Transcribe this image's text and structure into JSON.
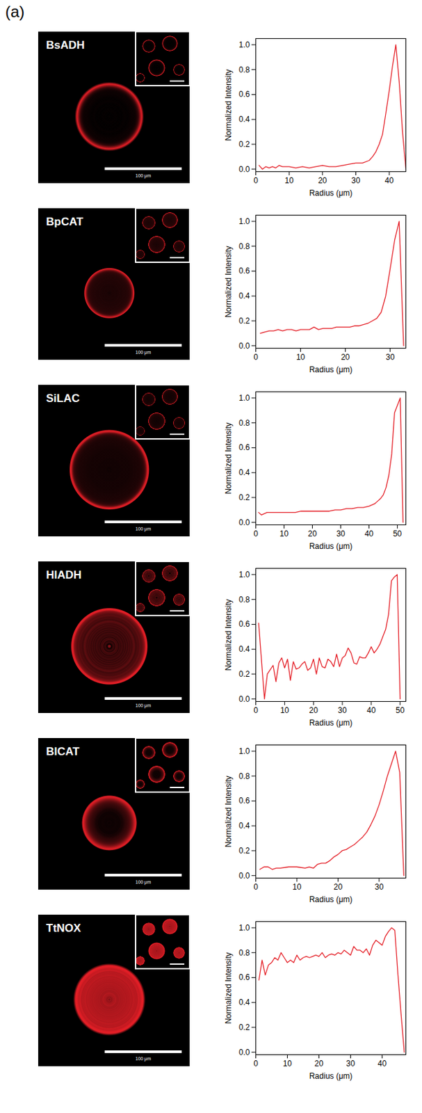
{
  "panel": "(a)",
  "scale_bar": {
    "length": 100,
    "label": "100 μm"
  },
  "chart_data": [
    {
      "type": "line",
      "title": "BsADH",
      "color": "#e41e26",
      "x_label": "Radius (μm)",
      "y_label": "Normalized Intensity",
      "xlim": [
        0,
        45
      ],
      "xticks": [
        0,
        10,
        20,
        30,
        40
      ],
      "ylim": [
        -0.02,
        1.05
      ],
      "yticks": [
        {
          "value": 0,
          "label": "0.0"
        },
        {
          "value": 0.2,
          "label": "0.2"
        },
        {
          "value": 0.4,
          "label": "0.4"
        },
        {
          "value": 0.6,
          "label": "0.6"
        },
        {
          "value": 0.8,
          "label": "0.8"
        },
        {
          "value": 1,
          "label": "1.0"
        }
      ],
      "x": [
        1,
        2,
        3,
        4,
        5,
        6,
        7,
        8,
        10,
        12,
        14,
        16,
        18,
        20,
        22,
        24,
        26,
        28,
        30,
        32,
        34,
        35,
        36,
        37,
        38,
        39,
        40,
        41,
        42,
        43,
        44,
        45
      ],
      "values": [
        0.03,
        0.0,
        0.02,
        0.01,
        0.02,
        0.01,
        0.03,
        0.02,
        0.02,
        0.01,
        0.02,
        0.01,
        0.02,
        0.03,
        0.02,
        0.02,
        0.03,
        0.04,
        0.05,
        0.05,
        0.07,
        0.1,
        0.14,
        0.2,
        0.28,
        0.45,
        0.63,
        0.83,
        1.0,
        0.7,
        0.3,
        0.0
      ]
    },
    {
      "type": "line",
      "title": "BpCAT",
      "color": "#e41e26",
      "x_label": "Radius (μm)",
      "y_label": "Normalized Intensity",
      "xlim": [
        0,
        33.5
      ],
      "xticks": [
        0,
        10,
        20,
        30
      ],
      "ylim": [
        -0.02,
        1.05
      ],
      "yticks": [
        {
          "value": 0,
          "label": "0.0"
        },
        {
          "value": 0.2,
          "label": "0.2"
        },
        {
          "value": 0.4,
          "label": "0.4"
        },
        {
          "value": 0.6,
          "label": "0.6"
        },
        {
          "value": 0.8,
          "label": "0.8"
        },
        {
          "value": 1,
          "label": "1.0"
        }
      ],
      "x": [
        1,
        2,
        3,
        4,
        5,
        6,
        7,
        8,
        9,
        10,
        11,
        12,
        13,
        14,
        15,
        16,
        17,
        18,
        19,
        20,
        21,
        22,
        23,
        24,
        25,
        26,
        27,
        28,
        29,
        30,
        31,
        32,
        33
      ],
      "values": [
        0.1,
        0.11,
        0.12,
        0.12,
        0.13,
        0.12,
        0.13,
        0.13,
        0.12,
        0.13,
        0.13,
        0.13,
        0.15,
        0.13,
        0.14,
        0.14,
        0.14,
        0.15,
        0.15,
        0.15,
        0.15,
        0.16,
        0.16,
        0.17,
        0.18,
        0.2,
        0.22,
        0.27,
        0.4,
        0.62,
        0.85,
        1.0,
        0.0
      ]
    },
    {
      "type": "line",
      "title": "SiLAC",
      "color": "#e41e26",
      "x_label": "Radius (μm)",
      "y_label": "Normalized Intensity",
      "xlim": [
        0,
        53
      ],
      "xticks": [
        0,
        10,
        20,
        30,
        40,
        50
      ],
      "ylim": [
        -0.02,
        1.05
      ],
      "yticks": [
        {
          "value": 0,
          "label": "0.0"
        },
        {
          "value": 0.2,
          "label": "0.2"
        },
        {
          "value": 0.4,
          "label": "0.4"
        },
        {
          "value": 0.6,
          "label": "0.6"
        },
        {
          "value": 0.8,
          "label": "0.8"
        },
        {
          "value": 1,
          "label": "1.0"
        }
      ],
      "x": [
        1,
        2,
        4,
        6,
        8,
        10,
        12,
        14,
        16,
        18,
        20,
        22,
        24,
        26,
        28,
        30,
        32,
        34,
        36,
        38,
        40,
        42,
        43,
        44,
        45,
        46,
        47,
        48,
        49,
        50,
        51,
        52
      ],
      "values": [
        0.08,
        0.06,
        0.08,
        0.08,
        0.08,
        0.08,
        0.08,
        0.08,
        0.09,
        0.09,
        0.09,
        0.09,
        0.09,
        0.09,
        0.1,
        0.1,
        0.11,
        0.11,
        0.12,
        0.12,
        0.13,
        0.15,
        0.17,
        0.19,
        0.22,
        0.28,
        0.38,
        0.55,
        0.88,
        0.94,
        1.0,
        0.0
      ]
    },
    {
      "type": "line",
      "title": "HlADH",
      "color": "#e41e26",
      "x_label": "Radius (μm)",
      "y_label": "Normalized Intensity",
      "xlim": [
        0,
        52
      ],
      "xticks": [
        0,
        10,
        20,
        30,
        40,
        50
      ],
      "ylim": [
        -0.02,
        1.05
      ],
      "yticks": [
        {
          "value": 0,
          "label": "0.0"
        },
        {
          "value": 0.2,
          "label": "0.2"
        },
        {
          "value": 0.4,
          "label": "0.4"
        },
        {
          "value": 0.6,
          "label": "0.6"
        },
        {
          "value": 0.8,
          "label": "0.8"
        },
        {
          "value": 1,
          "label": "1.0"
        }
      ],
      "x": [
        1,
        3,
        4,
        6,
        7,
        8,
        9,
        10,
        11,
        12,
        13,
        14,
        15,
        16,
        17,
        18,
        19,
        20,
        21,
        22,
        23,
        24,
        25,
        26,
        27,
        28,
        29,
        30,
        31,
        32,
        33,
        34,
        35,
        36,
        37,
        38,
        39,
        40,
        41,
        42,
        43,
        44,
        45,
        46,
        47,
        48,
        49,
        50
      ],
      "values": [
        0.61,
        0.0,
        0.2,
        0.27,
        0.14,
        0.29,
        0.33,
        0.25,
        0.32,
        0.15,
        0.3,
        0.24,
        0.25,
        0.28,
        0.3,
        0.23,
        0.25,
        0.32,
        0.2,
        0.33,
        0.26,
        0.25,
        0.32,
        0.3,
        0.26,
        0.36,
        0.26,
        0.33,
        0.35,
        0.41,
        0.37,
        0.29,
        0.28,
        0.34,
        0.33,
        0.33,
        0.37,
        0.42,
        0.37,
        0.4,
        0.44,
        0.5,
        0.56,
        0.68,
        0.95,
        0.98,
        1.0,
        0.0
      ]
    },
    {
      "type": "line",
      "title": "BlCAT",
      "color": "#e41e26",
      "x_label": "Radius (μm)",
      "y_label": "Normalized Intensity",
      "xlim": [
        0,
        36.5
      ],
      "xticks": [
        0,
        10,
        20,
        30
      ],
      "ylim": [
        -0.02,
        1.05
      ],
      "yticks": [
        {
          "value": 0,
          "label": "0.0"
        },
        {
          "value": 0.2,
          "label": "0.2"
        },
        {
          "value": 0.4,
          "label": "0.4"
        },
        {
          "value": 0.6,
          "label": "0.6"
        },
        {
          "value": 0.8,
          "label": "0.8"
        },
        {
          "value": 1,
          "label": "1.0"
        }
      ],
      "x": [
        1,
        2,
        3,
        4,
        5,
        6,
        8,
        10,
        12,
        13,
        14,
        15,
        16,
        17,
        18,
        19,
        20,
        21,
        22,
        23,
        24,
        25,
        26,
        27,
        28,
        29,
        30,
        31,
        32,
        33,
        34,
        35,
        36
      ],
      "values": [
        0.05,
        0.07,
        0.07,
        0.05,
        0.06,
        0.06,
        0.07,
        0.07,
        0.06,
        0.07,
        0.06,
        0.09,
        0.1,
        0.1,
        0.12,
        0.15,
        0.17,
        0.2,
        0.21,
        0.23,
        0.25,
        0.28,
        0.31,
        0.35,
        0.41,
        0.48,
        0.57,
        0.68,
        0.8,
        0.9,
        1.0,
        0.83,
        0.0
      ]
    },
    {
      "type": "line",
      "title": "TtNOX",
      "color": "#e41e26",
      "x_label": "Radius (μm)",
      "y_label": "Normalized Intensity",
      "xlim": [
        0,
        47.5
      ],
      "xticks": [
        0,
        10,
        20,
        30,
        40
      ],
      "ylim": [
        -0.02,
        1.05
      ],
      "yticks": [
        {
          "value": 0,
          "label": "0.0"
        },
        {
          "value": 0.2,
          "label": "0.2"
        },
        {
          "value": 0.4,
          "label": "0.4"
        },
        {
          "value": 0.6,
          "label": "0.6"
        },
        {
          "value": 0.8,
          "label": "0.8"
        },
        {
          "value": 1,
          "label": "1.0"
        }
      ],
      "x": [
        1,
        2,
        3,
        4,
        5,
        6,
        7,
        8,
        9,
        10,
        11,
        12,
        13,
        14,
        15,
        16,
        17,
        18,
        19,
        20,
        21,
        22,
        23,
        24,
        25,
        26,
        27,
        28,
        29,
        30,
        31,
        32,
        33,
        34,
        35,
        36,
        37,
        38,
        39,
        40,
        41,
        42,
        43,
        44,
        45,
        46,
        47
      ],
      "values": [
        0.58,
        0.74,
        0.62,
        0.7,
        0.72,
        0.76,
        0.74,
        0.8,
        0.76,
        0.72,
        0.74,
        0.72,
        0.78,
        0.74,
        0.76,
        0.77,
        0.76,
        0.77,
        0.78,
        0.77,
        0.8,
        0.76,
        0.78,
        0.79,
        0.78,
        0.8,
        0.79,
        0.82,
        0.8,
        0.78,
        0.85,
        0.82,
        0.82,
        0.8,
        0.83,
        0.78,
        0.86,
        0.9,
        0.88,
        0.86,
        0.93,
        0.97,
        1.0,
        0.98,
        0.62,
        0.3,
        0.0
      ]
    }
  ]
}
